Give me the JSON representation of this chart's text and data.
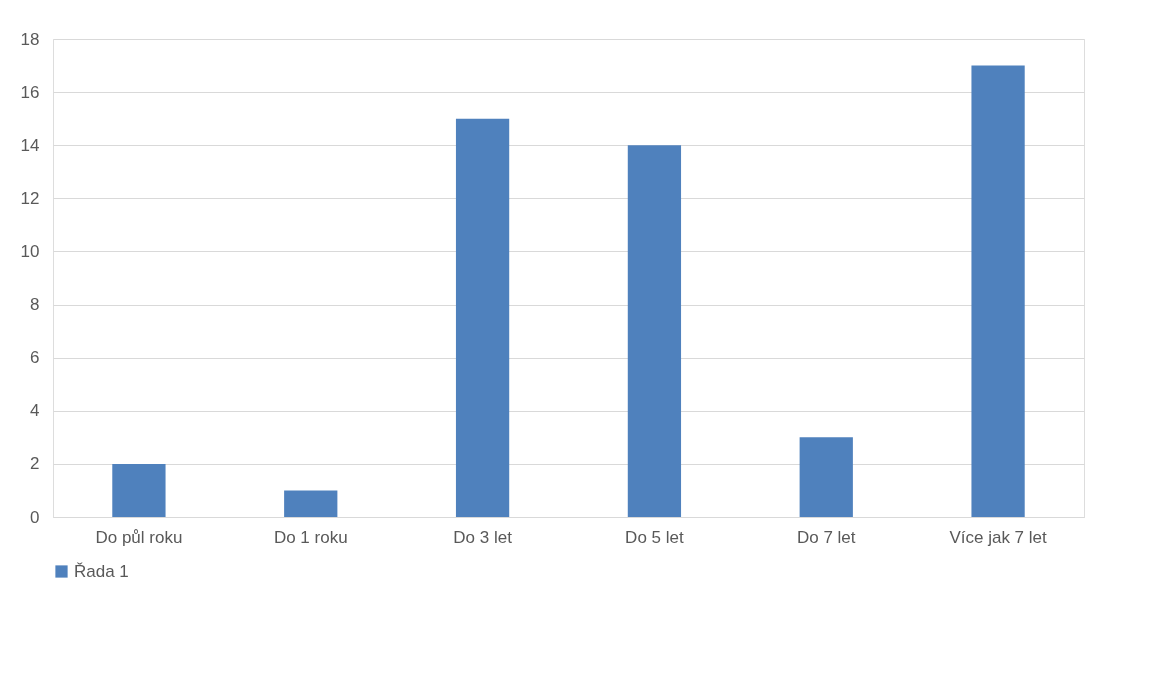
{
  "chart_data": {
    "type": "bar",
    "categories": [
      "Do půl roku",
      "Do 1 roku",
      "Do 3 let",
      "Do 5 let",
      "Do 7 let",
      "Více jak 7 let"
    ],
    "series": [
      {
        "name": "Řada 1",
        "color": "#4f81bd",
        "values": [
          2,
          1,
          15,
          14,
          3,
          17
        ]
      }
    ],
    "ylim": [
      0,
      18
    ],
    "yticks": [
      0,
      2,
      4,
      6,
      8,
      10,
      12,
      14,
      16,
      18
    ],
    "grid": "y",
    "legend": "bottom"
  }
}
